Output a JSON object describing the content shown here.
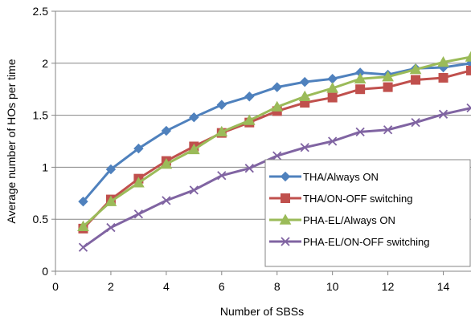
{
  "chart_data": {
    "type": "line",
    "xlabel": "Number of SBSs",
    "ylabel": "Average number of HOs per time",
    "xlim": [
      0,
      15
    ],
    "ylim": [
      0,
      2.5
    ],
    "xticks": [
      "0",
      "2",
      "4",
      "6",
      "8",
      "10",
      "12",
      "14"
    ],
    "yticks": [
      "0",
      "0.5",
      "1",
      "1.5",
      "2",
      "2.5"
    ],
    "grid": "horizontal",
    "legend_position": "bottom-right",
    "x": [
      1,
      2,
      3,
      4,
      5,
      6,
      7,
      8,
      9,
      10,
      11,
      12,
      13,
      14,
      15
    ],
    "series": [
      {
        "name": "THA/Always ON",
        "color": "#4F81BD",
        "marker": "diamond",
        "values": [
          0.67,
          0.98,
          1.18,
          1.35,
          1.48,
          1.6,
          1.68,
          1.77,
          1.82,
          1.85,
          1.91,
          1.89,
          1.95,
          1.96,
          2.0
        ]
      },
      {
        "name": "THA/ON-OFF switching",
        "color": "#C0504D",
        "marker": "square",
        "values": [
          0.41,
          0.69,
          0.89,
          1.06,
          1.2,
          1.33,
          1.43,
          1.54,
          1.62,
          1.67,
          1.75,
          1.77,
          1.84,
          1.86,
          1.93
        ]
      },
      {
        "name": "PHA-EL/Always ON",
        "color": "#9BBB59",
        "marker": "triangle",
        "values": [
          0.43,
          0.67,
          0.85,
          1.03,
          1.17,
          1.34,
          1.45,
          1.58,
          1.68,
          1.76,
          1.85,
          1.87,
          1.94,
          2.01,
          2.06
        ]
      },
      {
        "name": "PHA-EL/ON-OFF switching",
        "color": "#8064A2",
        "marker": "x",
        "values": [
          0.23,
          0.42,
          0.55,
          0.68,
          0.78,
          0.92,
          0.99,
          1.11,
          1.19,
          1.25,
          1.34,
          1.36,
          1.43,
          1.51,
          1.57
        ]
      }
    ]
  }
}
